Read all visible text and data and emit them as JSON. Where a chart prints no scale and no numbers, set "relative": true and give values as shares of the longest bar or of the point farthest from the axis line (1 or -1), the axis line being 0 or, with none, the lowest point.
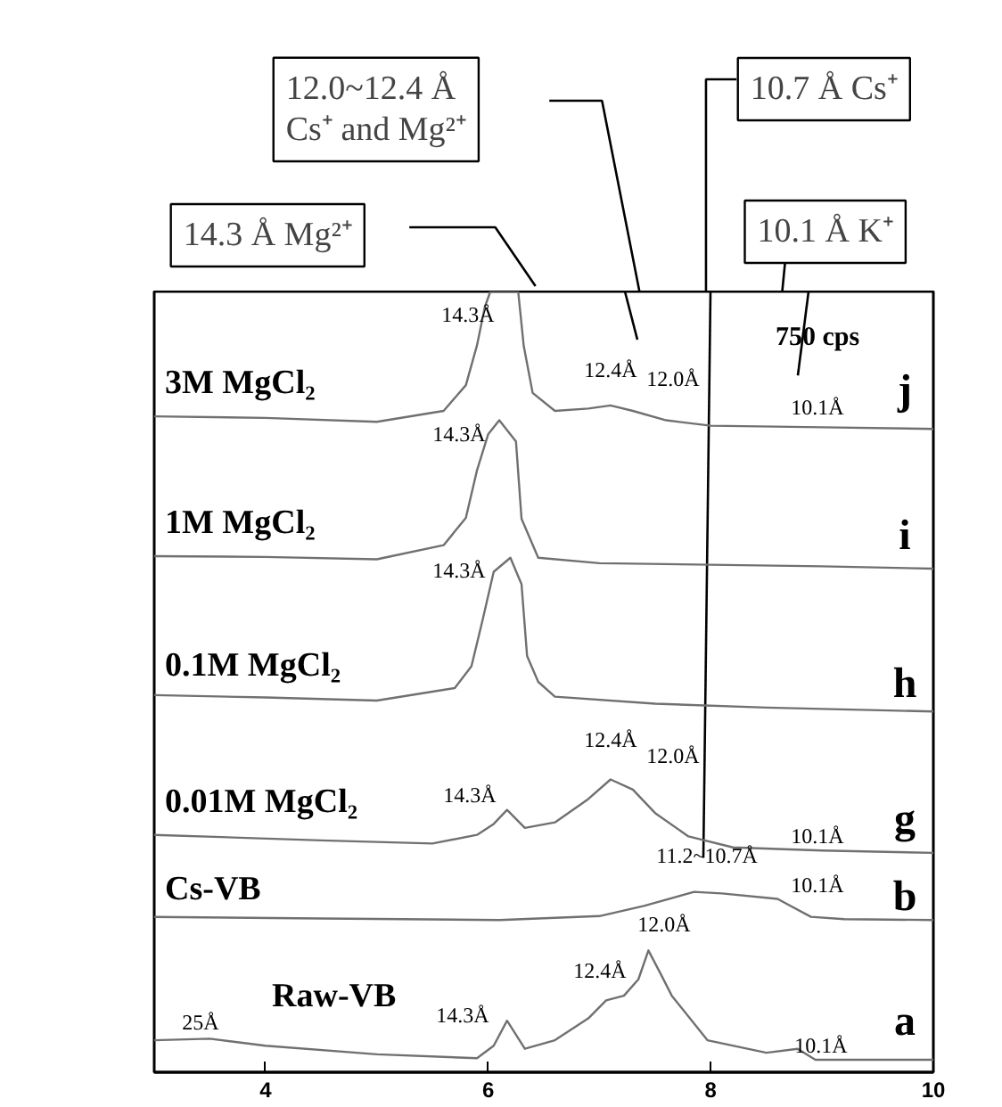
{
  "chart_data": {
    "type": "line",
    "relative": true,
    "xlim": [
      3,
      10
    ],
    "xticks": [
      4,
      6,
      8,
      10
    ],
    "tick_labels": "x",
    "grid": false,
    "marker": "none",
    "line_style": "solid",
    "series": [
      {
        "name": "3M MgCl₂",
        "color": "#707070",
        "x": [
          3.0,
          4.0,
          5.0,
          5.6,
          5.8,
          5.9,
          5.97,
          6.02,
          6.27,
          6.32,
          6.4,
          6.6,
          6.9,
          7.1,
          7.3,
          7.6,
          8.0,
          9.0,
          10.0
        ],
        "values": [
          0.84,
          0.838,
          0.833,
          0.847,
          0.88,
          0.931,
          0.98,
          1.0,
          1.0,
          0.93,
          0.87,
          0.847,
          0.85,
          0.854,
          0.847,
          0.835,
          0.828,
          0.826,
          0.824
        ]
      },
      {
        "name": "1M MgCl₂",
        "color": "#707070",
        "x": [
          3.0,
          4.0,
          5.0,
          5.6,
          5.8,
          5.9,
          6.0,
          6.1,
          6.25,
          6.3,
          6.45,
          7.0,
          8.0,
          9.0,
          10.0
        ],
        "values": [
          0.661,
          0.66,
          0.657,
          0.675,
          0.71,
          0.771,
          0.817,
          0.835,
          0.808,
          0.709,
          0.659,
          0.652,
          0.65,
          0.648,
          0.645
        ]
      },
      {
        "name": "0.1M MgCl₂",
        "color": "#707070",
        "x": [
          3.0,
          4.0,
          5.0,
          5.7,
          5.85,
          5.95,
          6.05,
          6.2,
          6.3,
          6.35,
          6.45,
          6.6,
          7.5,
          8.5,
          10.0
        ],
        "values": [
          0.483,
          0.48,
          0.476,
          0.492,
          0.52,
          0.579,
          0.641,
          0.659,
          0.625,
          0.533,
          0.5,
          0.481,
          0.472,
          0.467,
          0.462
        ]
      },
      {
        "name": "0.01M MgCl₂",
        "color": "#707070",
        "x": [
          3.0,
          4.5,
          5.5,
          5.9,
          6.05,
          6.17,
          6.33,
          6.6,
          6.9,
          7.1,
          7.3,
          7.5,
          7.8,
          8.2,
          9.0,
          10.0
        ],
        "values": [
          0.304,
          0.297,
          0.293,
          0.304,
          0.318,
          0.336,
          0.313,
          0.32,
          0.35,
          0.375,
          0.362,
          0.332,
          0.302,
          0.288,
          0.284,
          0.281
        ]
      },
      {
        "name": "Cs-VB",
        "color": "#707070",
        "x": [
          3.0,
          4.5,
          6.1,
          7.0,
          7.4,
          7.85,
          8.1,
          8.6,
          8.9,
          9.2,
          10.0
        ],
        "values": [
          0.199,
          0.197,
          0.195,
          0.2,
          0.213,
          0.231,
          0.229,
          0.222,
          0.199,
          0.196,
          0.195
        ]
      },
      {
        "name": "Raw-VB",
        "color": "#707070",
        "x": [
          3.0,
          3.5,
          4.0,
          5.0,
          5.9,
          6.05,
          6.17,
          6.33,
          6.6,
          6.9,
          7.06,
          7.22,
          7.35,
          7.44,
          7.55,
          7.65,
          7.97,
          8.5,
          8.78,
          8.94,
          10.0
        ],
        "values": [
          0.041,
          0.043,
          0.034,
          0.023,
          0.018,
          0.034,
          0.066,
          0.03,
          0.041,
          0.069,
          0.092,
          0.098,
          0.119,
          0.156,
          0.126,
          0.098,
          0.041,
          0.025,
          0.03,
          0.016,
          0.016
        ]
      }
    ],
    "annotations": [
      "14.3 Å Mg²⁺",
      "12.0~12.4 Å\nCs⁺ and Mg²⁺",
      "10.7 Å Cs⁺",
      "10.1 Å K⁺",
      "750 cps",
      "14.3Å",
      "12.4Å",
      "12.0Å",
      "10.1Å",
      "14.3Å",
      "14.3Å",
      "12.4Å",
      "12.0Å",
      "14.3Å",
      "10.1Å",
      "11.2~10.7Å",
      "10.1Å",
      "12.0Å",
      "12.4Å",
      "14.3Å",
      "25Å",
      "10.1Å",
      "j",
      "i",
      "h",
      "g",
      "b",
      "a"
    ]
  }
}
